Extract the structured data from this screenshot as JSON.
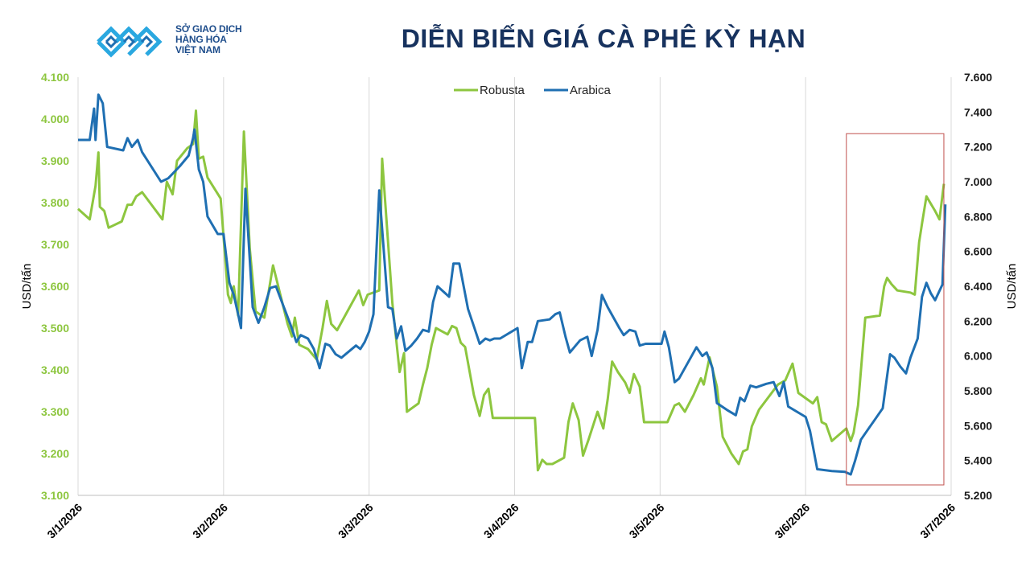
{
  "logo": {
    "line1": "SỞ GIAO DỊCH",
    "line2": "HÀNG HÓA",
    "line3": "VIỆT NAM"
  },
  "colors": {
    "robusta": "#8dc63f",
    "arabica": "#1f6fb2",
    "highlight": "#c0504d",
    "brand": "#1f4e8c"
  },
  "chart_data": {
    "type": "line",
    "title": "DIỄN BIẾN GIÁ CÀ PHÊ KỲ HẠN",
    "xlabel": "",
    "ylabel_left": "USD/tấn",
    "ylabel_right": "USD/tấn",
    "ylim_left": [
      3100,
      4100
    ],
    "ylim_right": [
      5200,
      7600
    ],
    "yticks_left": [
      "3.100",
      "3.200",
      "3.300",
      "3.400",
      "3.500",
      "3.600",
      "3.700",
      "3.800",
      "3.900",
      "4.000",
      "4.100"
    ],
    "yticks_right": [
      "5.200",
      "5.400",
      "5.600",
      "5.800",
      "6.000",
      "6.200",
      "6.400",
      "6.600",
      "6.800",
      "7.000",
      "7.200",
      "7.400",
      "7.600"
    ],
    "xticks": [
      "3/1/2026",
      "3/2/2026",
      "3/3/2026",
      "3/4/2026",
      "3/5/2026",
      "3/6/2026",
      "3/7/2026"
    ],
    "legend_position": "top-center",
    "grid": "vertical",
    "highlight_box": {
      "x_from": 5.28,
      "x_to": 5.95,
      "y_from": 3125,
      "y_to": 3965
    },
    "series": [
      {
        "name": "Robusta",
        "axis": "left",
        "points": [
          [
            0.0,
            3785
          ],
          [
            0.08,
            3760
          ],
          [
            0.12,
            3840
          ],
          [
            0.14,
            3920
          ],
          [
            0.15,
            3790
          ],
          [
            0.18,
            3780
          ],
          [
            0.21,
            3740
          ],
          [
            0.3,
            3755
          ],
          [
            0.34,
            3795
          ],
          [
            0.37,
            3795
          ],
          [
            0.4,
            3815
          ],
          [
            0.44,
            3825
          ],
          [
            0.58,
            3760
          ],
          [
            0.61,
            3850
          ],
          [
            0.65,
            3820
          ],
          [
            0.68,
            3900
          ],
          [
            0.75,
            3930
          ],
          [
            0.79,
            3940
          ],
          [
            0.81,
            4020
          ],
          [
            0.83,
            3905
          ],
          [
            0.86,
            3910
          ],
          [
            0.89,
            3860
          ],
          [
            0.98,
            3810
          ],
          [
            1.03,
            3580
          ],
          [
            1.05,
            3560
          ],
          [
            1.07,
            3600
          ],
          [
            1.1,
            3530
          ],
          [
            1.14,
            3970
          ],
          [
            1.18,
            3690
          ],
          [
            1.22,
            3540
          ],
          [
            1.28,
            3525
          ],
          [
            1.34,
            3650
          ],
          [
            1.44,
            3510
          ],
          [
            1.47,
            3480
          ],
          [
            1.49,
            3525
          ],
          [
            1.52,
            3460
          ],
          [
            1.58,
            3450
          ],
          [
            1.64,
            3425
          ],
          [
            1.68,
            3500
          ],
          [
            1.71,
            3565
          ],
          [
            1.74,
            3510
          ],
          [
            1.78,
            3495
          ],
          [
            1.93,
            3590
          ],
          [
            1.96,
            3555
          ],
          [
            1.99,
            3580
          ],
          [
            2.07,
            3590
          ],
          [
            2.09,
            3905
          ],
          [
            2.16,
            3560
          ],
          [
            2.21,
            3395
          ],
          [
            2.24,
            3440
          ],
          [
            2.26,
            3300
          ],
          [
            2.34,
            3320
          ],
          [
            2.37,
            3365
          ],
          [
            2.4,
            3405
          ],
          [
            2.43,
            3460
          ],
          [
            2.46,
            3500
          ],
          [
            2.54,
            3485
          ],
          [
            2.57,
            3505
          ],
          [
            2.6,
            3500
          ],
          [
            2.63,
            3465
          ],
          [
            2.66,
            3455
          ],
          [
            2.72,
            3340
          ],
          [
            2.76,
            3290
          ],
          [
            2.79,
            3340
          ],
          [
            2.82,
            3355
          ],
          [
            2.85,
            3285
          ],
          [
            3.14,
            3285
          ],
          [
            3.16,
            3160
          ],
          [
            3.19,
            3185
          ],
          [
            3.22,
            3175
          ],
          [
            3.26,
            3175
          ],
          [
            3.34,
            3190
          ],
          [
            3.37,
            3275
          ],
          [
            3.4,
            3320
          ],
          [
            3.44,
            3280
          ],
          [
            3.47,
            3195
          ],
          [
            3.51,
            3235
          ],
          [
            3.57,
            3300
          ],
          [
            3.61,
            3260
          ],
          [
            3.64,
            3330
          ],
          [
            3.67,
            3420
          ],
          [
            3.71,
            3395
          ],
          [
            3.76,
            3370
          ],
          [
            3.79,
            3345
          ],
          [
            3.82,
            3390
          ],
          [
            3.86,
            3360
          ],
          [
            3.89,
            3275
          ],
          [
            4.05,
            3275
          ],
          [
            4.1,
            3315
          ],
          [
            4.13,
            3320
          ],
          [
            4.17,
            3300
          ],
          [
            4.23,
            3340
          ],
          [
            4.28,
            3380
          ],
          [
            4.3,
            3365
          ],
          [
            4.34,
            3430
          ],
          [
            4.39,
            3360
          ],
          [
            4.43,
            3240
          ],
          [
            4.49,
            3200
          ],
          [
            4.54,
            3175
          ],
          [
            4.57,
            3205
          ],
          [
            4.6,
            3210
          ],
          [
            4.63,
            3265
          ],
          [
            4.68,
            3305
          ],
          [
            4.81,
            3365
          ],
          [
            4.86,
            3375
          ],
          [
            4.91,
            3415
          ],
          [
            4.95,
            3345
          ],
          [
            5.05,
            3320
          ],
          [
            5.08,
            3335
          ],
          [
            5.11,
            3275
          ],
          [
            5.14,
            3270
          ],
          [
            5.18,
            3230
          ],
          [
            5.28,
            3260
          ],
          [
            5.31,
            3230
          ],
          [
            5.33,
            3250
          ],
          [
            5.36,
            3315
          ],
          [
            5.41,
            3525
          ],
          [
            5.51,
            3530
          ],
          [
            5.54,
            3600
          ],
          [
            5.56,
            3620
          ],
          [
            5.59,
            3605
          ],
          [
            5.63,
            3590
          ],
          [
            5.72,
            3585
          ],
          [
            5.75,
            3580
          ],
          [
            5.78,
            3705
          ],
          [
            5.8,
            3750
          ],
          [
            5.83,
            3815
          ],
          [
            5.89,
            3780
          ],
          [
            5.92,
            3760
          ],
          [
            5.95,
            3845
          ]
        ]
      },
      {
        "name": "Arabica",
        "axis": "right",
        "points": [
          [
            0.0,
            7240
          ],
          [
            0.08,
            7240
          ],
          [
            0.11,
            7420
          ],
          [
            0.12,
            7240
          ],
          [
            0.14,
            7500
          ],
          [
            0.17,
            7450
          ],
          [
            0.2,
            7200
          ],
          [
            0.31,
            7180
          ],
          [
            0.34,
            7250
          ],
          [
            0.37,
            7200
          ],
          [
            0.41,
            7240
          ],
          [
            0.44,
            7170
          ],
          [
            0.57,
            7000
          ],
          [
            0.62,
            7020
          ],
          [
            0.7,
            7090
          ],
          [
            0.76,
            7150
          ],
          [
            0.79,
            7250
          ],
          [
            0.8,
            7300
          ],
          [
            0.83,
            7070
          ],
          [
            0.86,
            7000
          ],
          [
            0.89,
            6800
          ],
          [
            0.96,
            6700
          ],
          [
            1.0,
            6700
          ],
          [
            1.04,
            6420
          ],
          [
            1.07,
            6350
          ],
          [
            1.1,
            6240
          ],
          [
            1.12,
            6160
          ],
          [
            1.15,
            6960
          ],
          [
            1.2,
            6280
          ],
          [
            1.24,
            6190
          ],
          [
            1.28,
            6280
          ],
          [
            1.32,
            6390
          ],
          [
            1.36,
            6400
          ],
          [
            1.46,
            6180
          ],
          [
            1.5,
            6080
          ],
          [
            1.53,
            6120
          ],
          [
            1.58,
            6100
          ],
          [
            1.62,
            6040
          ],
          [
            1.66,
            5930
          ],
          [
            1.7,
            6070
          ],
          [
            1.73,
            6060
          ],
          [
            1.77,
            6010
          ],
          [
            1.81,
            5990
          ],
          [
            1.91,
            6060
          ],
          [
            1.94,
            6040
          ],
          [
            1.97,
            6080
          ],
          [
            2.0,
            6140
          ],
          [
            2.03,
            6240
          ],
          [
            2.07,
            6950
          ],
          [
            2.13,
            6280
          ],
          [
            2.16,
            6270
          ],
          [
            2.19,
            6100
          ],
          [
            2.22,
            6170
          ],
          [
            2.25,
            6030
          ],
          [
            2.29,
            6060
          ],
          [
            2.33,
            6100
          ],
          [
            2.37,
            6150
          ],
          [
            2.41,
            6140
          ],
          [
            2.44,
            6310
          ],
          [
            2.47,
            6400
          ],
          [
            2.55,
            6340
          ],
          [
            2.58,
            6530
          ],
          [
            2.62,
            6530
          ],
          [
            2.68,
            6270
          ],
          [
            2.72,
            6170
          ],
          [
            2.76,
            6070
          ],
          [
            2.8,
            6100
          ],
          [
            2.83,
            6090
          ],
          [
            2.86,
            6100
          ],
          [
            2.9,
            6100
          ],
          [
            3.02,
            6160
          ],
          [
            3.05,
            5930
          ],
          [
            3.09,
            6080
          ],
          [
            3.12,
            6080
          ],
          [
            3.16,
            6200
          ],
          [
            3.24,
            6210
          ],
          [
            3.28,
            6240
          ],
          [
            3.31,
            6250
          ],
          [
            3.35,
            6110
          ],
          [
            3.38,
            6020
          ],
          [
            3.42,
            6060
          ],
          [
            3.45,
            6090
          ],
          [
            3.5,
            6110
          ],
          [
            3.53,
            6000
          ],
          [
            3.57,
            6150
          ],
          [
            3.6,
            6350
          ],
          [
            3.64,
            6280
          ],
          [
            3.72,
            6160
          ],
          [
            3.75,
            6120
          ],
          [
            3.79,
            6150
          ],
          [
            3.83,
            6140
          ],
          [
            3.86,
            6060
          ],
          [
            3.9,
            6070
          ],
          [
            4.01,
            6070
          ],
          [
            4.03,
            6140
          ],
          [
            4.06,
            6050
          ],
          [
            4.1,
            5850
          ],
          [
            4.13,
            5870
          ],
          [
            4.21,
            5990
          ],
          [
            4.25,
            6050
          ],
          [
            4.29,
            6000
          ],
          [
            4.32,
            6020
          ],
          [
            4.36,
            5930
          ],
          [
            4.39,
            5730
          ],
          [
            4.46,
            5690
          ],
          [
            4.52,
            5660
          ],
          [
            4.55,
            5760
          ],
          [
            4.58,
            5740
          ],
          [
            4.62,
            5830
          ],
          [
            4.66,
            5820
          ],
          [
            4.73,
            5840
          ],
          [
            4.78,
            5850
          ],
          [
            4.82,
            5770
          ],
          [
            4.85,
            5850
          ],
          [
            4.88,
            5710
          ],
          [
            5.0,
            5650
          ],
          [
            5.03,
            5570
          ],
          [
            5.08,
            5350
          ],
          [
            5.18,
            5340
          ],
          [
            5.27,
            5335
          ],
          [
            5.31,
            5320
          ],
          [
            5.34,
            5400
          ],
          [
            5.38,
            5520
          ],
          [
            5.43,
            5580
          ],
          [
            5.48,
            5640
          ],
          [
            5.53,
            5700
          ],
          [
            5.58,
            6010
          ],
          [
            5.61,
            5990
          ],
          [
            5.65,
            5940
          ],
          [
            5.69,
            5900
          ],
          [
            5.72,
            5990
          ],
          [
            5.77,
            6100
          ],
          [
            5.8,
            6340
          ],
          [
            5.83,
            6420
          ],
          [
            5.86,
            6360
          ],
          [
            5.89,
            6320
          ],
          [
            5.94,
            6410
          ],
          [
            5.96,
            6870
          ]
        ]
      }
    ]
  }
}
